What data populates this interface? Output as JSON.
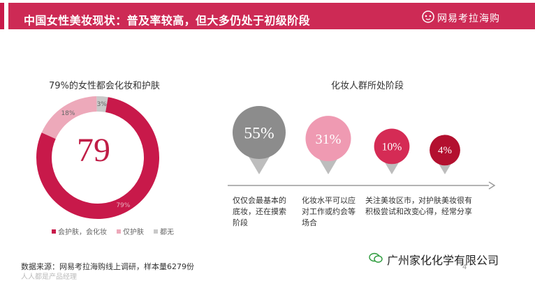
{
  "header": {
    "title": "中国女性美妆现状：普及率较高，但大多仍处于初级阶段",
    "brand": "网易考拉海购",
    "accent_color": "#cd2a55"
  },
  "chart_data": [
    {
      "type": "pie",
      "title": "79%的女性都会化妆和护肤",
      "center_label": "79",
      "slices": [
        {
          "name": "会护肤，会化妆",
          "value": 79,
          "color": "#c8194a"
        },
        {
          "name": "仅护肤",
          "value": 18,
          "color": "#eda9ba"
        },
        {
          "name": "都无",
          "value": 3,
          "color": "#c9c9c9"
        }
      ],
      "slice_labels": [
        "79%",
        "18%",
        "3%"
      ],
      "legend_position": "bottom"
    },
    {
      "type": "bubble",
      "title": "化妆人群所处阶段",
      "stages": [
        {
          "value_label": "55%",
          "value": 55,
          "color": "#8c8c8c",
          "description": "仅仅会最基本的底妆，还在摸索阶段"
        },
        {
          "value_label": "31%",
          "value": 31,
          "color": "#ef9ab2",
          "description": "化妆水平可以应对工作或约会等场合"
        },
        {
          "value_label": "10%",
          "value": 10,
          "color": "#d52b55",
          "description": "关注美妆区市，积极尝试和改变"
        },
        {
          "value_label": "4%",
          "value": 4,
          "color": "#b3102f",
          "description": "对护肤美妆很有心得，经常分享"
        }
      ]
    }
  ],
  "footer": {
    "source": "数据来源：网易考拉海购线上调研，样本量6279份",
    "page_number": "4",
    "watermark": "广州家化化学有限公司",
    "platform": "人人都是产品经理"
  }
}
